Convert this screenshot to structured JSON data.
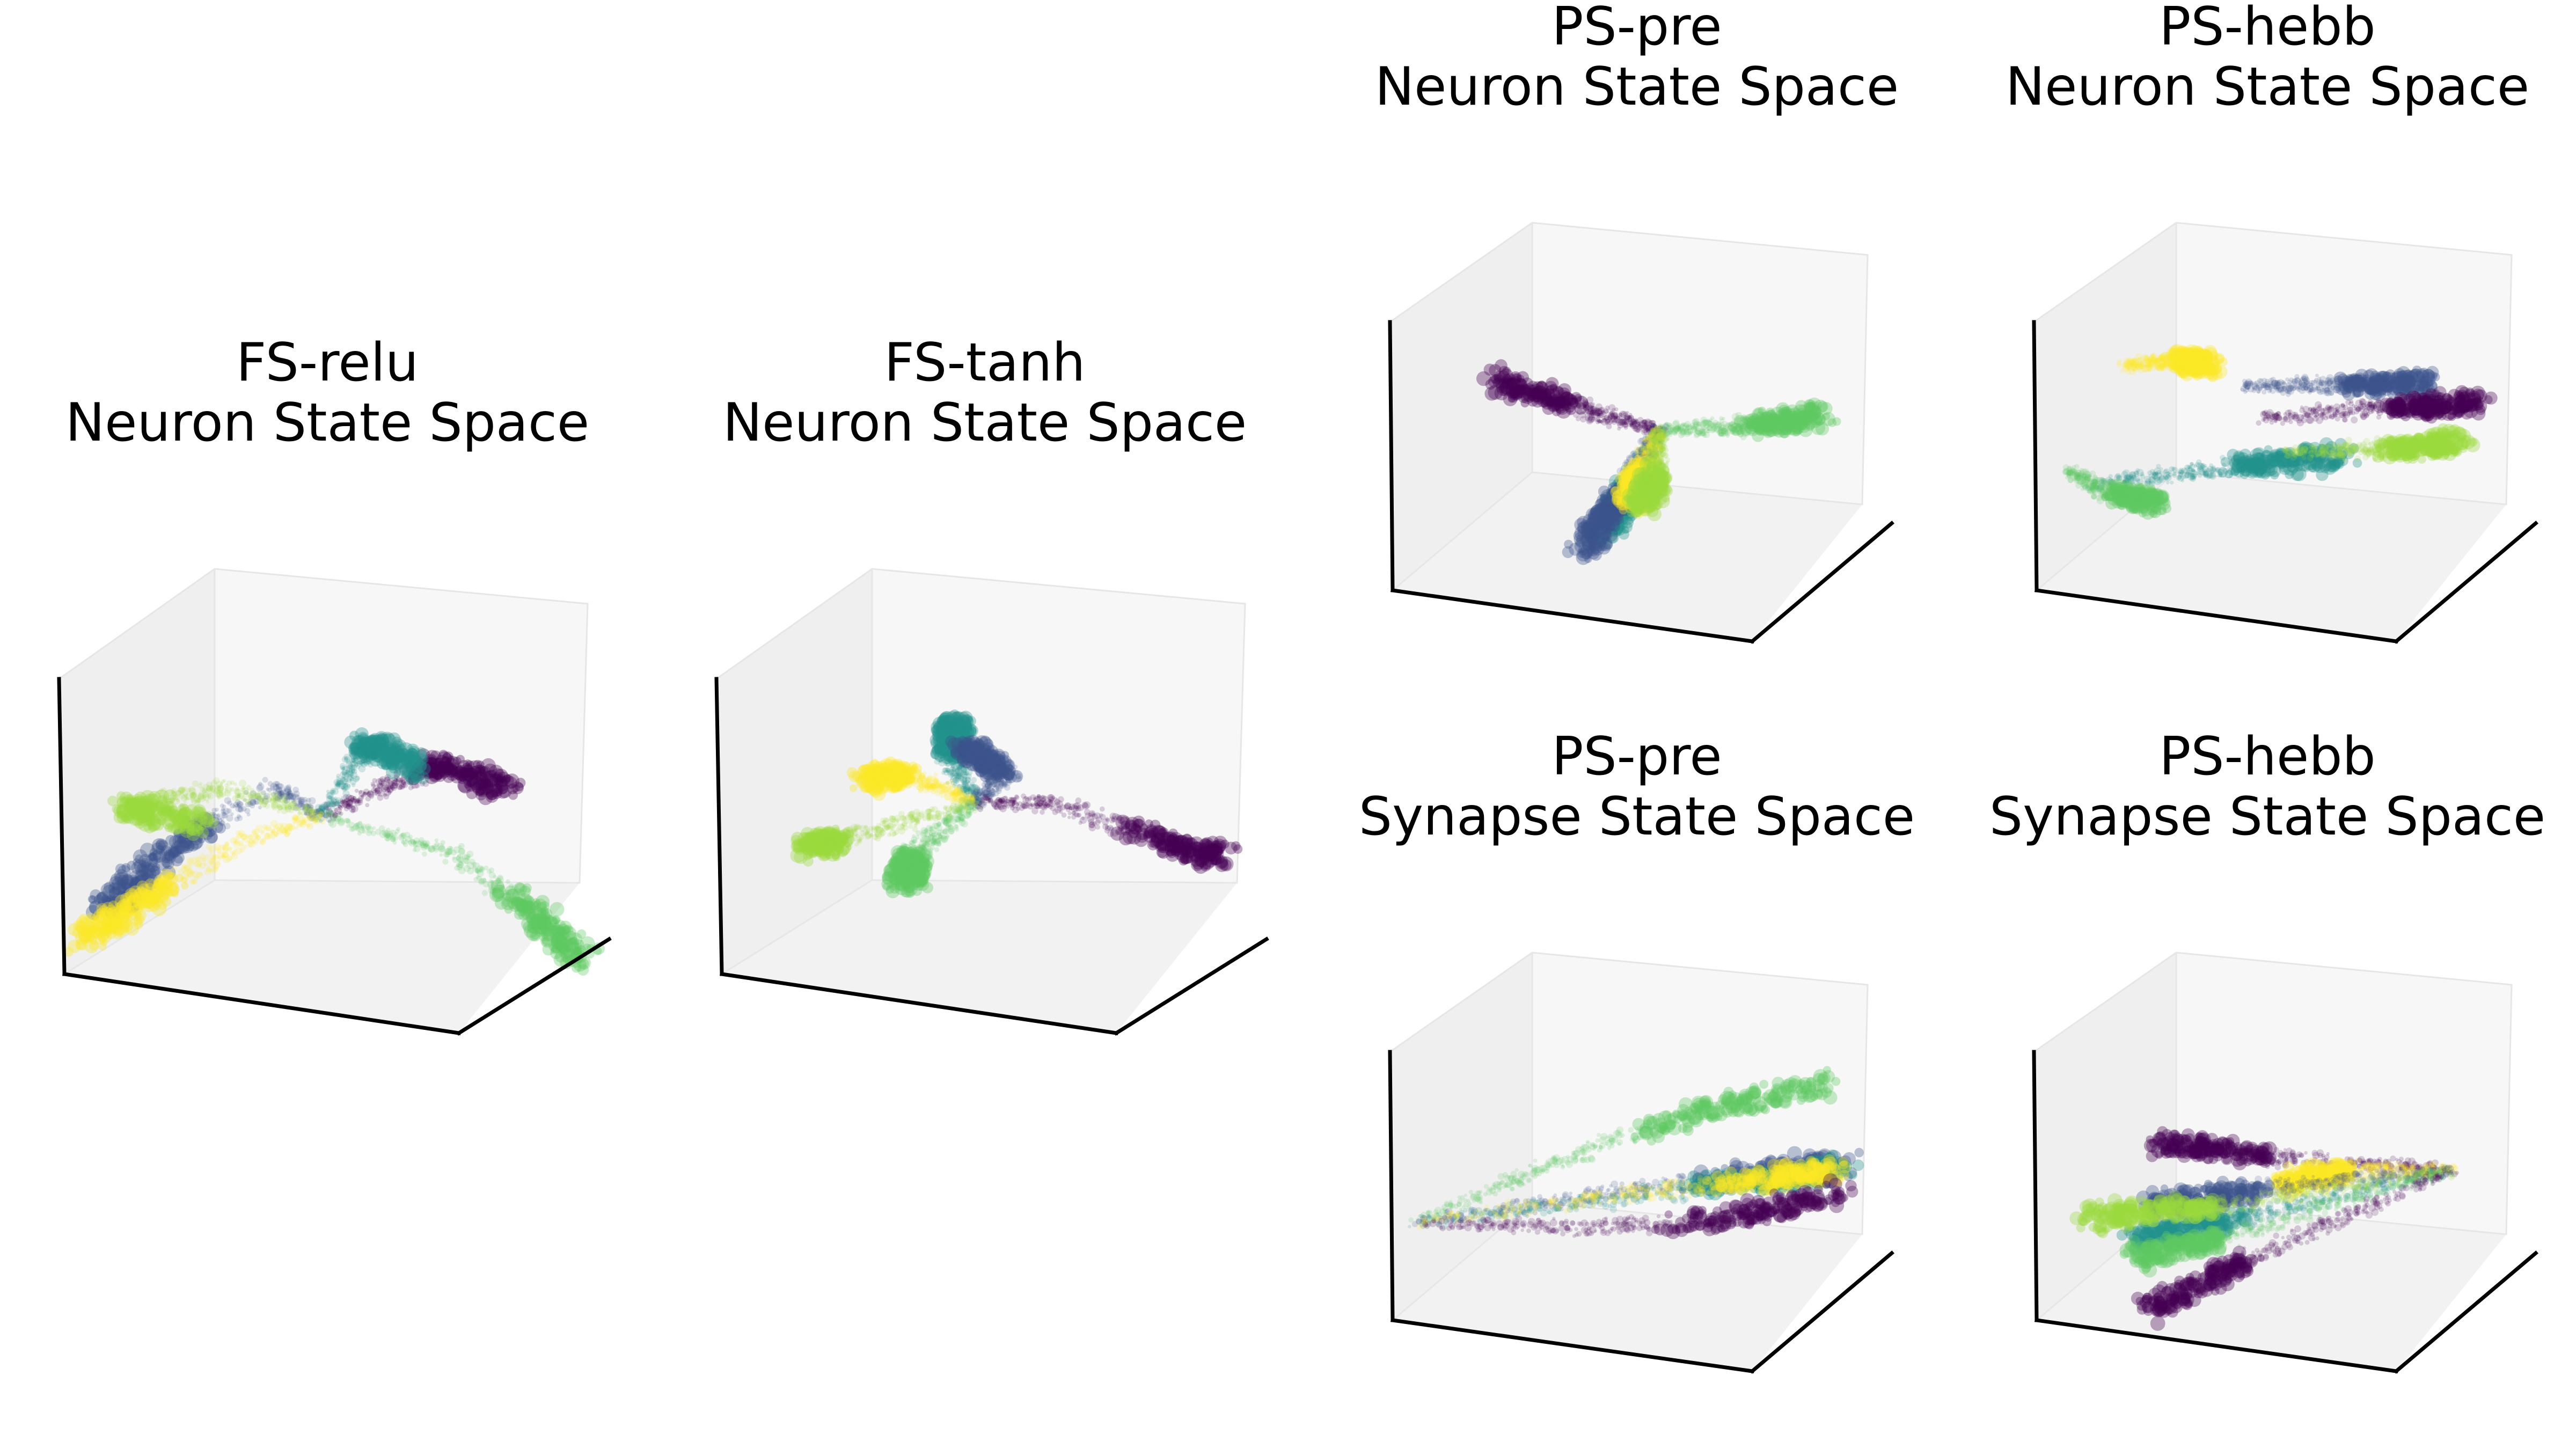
{
  "colors": {
    "palette": [
      "#440154",
      "#3b528b",
      "#21918c",
      "#5ec962",
      "#fde725"
    ],
    "pane_light": "#f7f7f7",
    "pane_mid": "#efefef",
    "pane_floor": "#f2f2f2",
    "axis_line": "#000000"
  },
  "chart_data": [
    {
      "type": "scatter",
      "projection": "3d",
      "title_line1": "FS-relu",
      "title_line2": "Neuron State Space",
      "grid": false,
      "ticks": false,
      "colormap": "viridis",
      "series": [
        {
          "color": "#440154",
          "trajectory": [
            [
              0.0,
              0.0,
              0.3
            ],
            [
              0.3,
              0.15,
              0.55
            ],
            [
              0.5,
              0.3,
              0.7
            ],
            [
              0.75,
              0.5,
              0.5
            ]
          ]
        },
        {
          "color": "#3b528b",
          "trajectory": [
            [
              0.0,
              0.0,
              0.3
            ],
            [
              -0.2,
              -0.1,
              0.5
            ],
            [
              -0.55,
              -0.45,
              0.15
            ],
            [
              -0.85,
              -0.7,
              -0.35
            ]
          ]
        },
        {
          "color": "#21918c",
          "trajectory": [
            [
              0.0,
              0.0,
              0.3
            ],
            [
              0.15,
              0.1,
              0.7
            ],
            [
              0.2,
              0.12,
              0.85
            ],
            [
              0.35,
              0.3,
              0.65
            ]
          ]
        },
        {
          "color": "#5ec962",
          "trajectory": [
            [
              0.0,
              0.0,
              0.3
            ],
            [
              0.5,
              0.4,
              0.0
            ],
            [
              0.8,
              0.7,
              -0.5
            ],
            [
              0.95,
              0.9,
              -0.9
            ]
          ]
        },
        {
          "color": "#9bd93c",
          "trajectory": [
            [
              0.0,
              0.0,
              0.3
            ],
            [
              -0.4,
              -0.2,
              0.5
            ],
            [
              -0.8,
              -0.5,
              0.35
            ],
            [
              -0.5,
              -0.3,
              0.25
            ]
          ]
        },
        {
          "color": "#fde725",
          "trajectory": [
            [
              0.0,
              0.0,
              0.3
            ],
            [
              -0.35,
              -0.25,
              0.1
            ],
            [
              -0.7,
              -0.6,
              -0.3
            ],
            [
              -0.9,
              -0.8,
              -0.55
            ]
          ]
        }
      ]
    },
    {
      "type": "scatter",
      "projection": "3d",
      "title_line1": "FS-tanh",
      "title_line2": "Neuron State Space",
      "grid": false,
      "ticks": false,
      "colormap": "viridis",
      "series": [
        {
          "color": "#21918c",
          "trajectory": [
            [
              -0.1,
              0.2,
              0.3
            ],
            [
              -0.2,
              0.15,
              0.65
            ],
            [
              -0.15,
              0.1,
              0.95
            ]
          ]
        },
        {
          "color": "#3b528b",
          "trajectory": [
            [
              -0.1,
              0.2,
              0.3
            ],
            [
              0.1,
              0.1,
              0.6
            ],
            [
              -0.05,
              0.0,
              0.8
            ]
          ]
        },
        {
          "color": "#440154",
          "trajectory": [
            [
              -0.1,
              0.2,
              0.3
            ],
            [
              0.3,
              0.2,
              0.4
            ],
            [
              0.75,
              0.5,
              0.1
            ],
            [
              0.95,
              0.7,
              -0.05
            ]
          ]
        },
        {
          "color": "#fde725",
          "trajectory": [
            [
              -0.1,
              0.2,
              0.3
            ],
            [
              -0.4,
              0.1,
              0.5
            ],
            [
              -0.55,
              0.0,
              0.45
            ]
          ]
        },
        {
          "color": "#5ec962",
          "trajectory": [
            [
              -0.1,
              0.2,
              0.3
            ],
            [
              -0.3,
              -0.1,
              0.0
            ],
            [
              -0.3,
              -0.2,
              -0.2
            ]
          ]
        },
        {
          "color": "#9bd93c",
          "trajectory": [
            [
              -0.1,
              0.2,
              0.3
            ],
            [
              -0.6,
              -0.3,
              0.1
            ],
            [
              -0.7,
              -0.4,
              0.05
            ]
          ]
        }
      ]
    },
    {
      "type": "scatter",
      "projection": "3d",
      "title_line1": "PS-pre",
      "title_line2": "Neuron State Space",
      "grid": false,
      "ticks": false,
      "colormap": "viridis",
      "series": [
        {
          "color": "#440154",
          "trajectory": [
            [
              0.1,
              0.2,
              0.35
            ],
            [
              -0.2,
              -0.1,
              0.6
            ],
            [
              -0.55,
              -0.45,
              0.95
            ]
          ]
        },
        {
          "color": "#5ec962",
          "trajectory": [
            [
              0.1,
              0.2,
              0.35
            ],
            [
              0.45,
              0.4,
              0.35
            ],
            [
              0.8,
              0.75,
              0.35
            ]
          ]
        },
        {
          "color": "#21918c",
          "trajectory": [
            [
              0.1,
              0.2,
              0.35
            ],
            [
              0.0,
              0.1,
              0.0
            ],
            [
              -0.15,
              0.0,
              -0.5
            ]
          ]
        },
        {
          "color": "#3b528b",
          "trajectory": [
            [
              0.1,
              0.2,
              0.35
            ],
            [
              -0.05,
              0.05,
              -0.1
            ],
            [
              -0.2,
              -0.1,
              -0.55
            ]
          ]
        },
        {
          "color": "#fde725",
          "trajectory": [
            [
              0.1,
              0.2,
              0.35
            ],
            [
              0.05,
              0.1,
              0.1
            ],
            [
              0.0,
              0.05,
              -0.2
            ]
          ]
        },
        {
          "color": "#9bd93c",
          "trajectory": [
            [
              0.1,
              0.2,
              0.35
            ],
            [
              0.1,
              0.15,
              0.05
            ],
            [
              0.05,
              0.1,
              -0.25
            ]
          ]
        }
      ]
    },
    {
      "type": "scatter",
      "projection": "3d",
      "title_line1": "PS-hebb",
      "title_line2": "Neuron State Space",
      "grid": false,
      "ticks": false,
      "colormap": "viridis",
      "series": [
        {
          "color": "#fde725",
          "trajectory": [
            [
              -0.7,
              -0.3,
              0.95
            ],
            [
              -0.5,
              -0.1,
              0.95
            ],
            [
              -0.35,
              0.0,
              0.9
            ]
          ]
        },
        {
          "color": "#3b528b",
          "trajectory": [
            [
              -0.2,
              0.1,
              0.7
            ],
            [
              0.2,
              0.4,
              0.65
            ],
            [
              0.6,
              0.7,
              0.6
            ]
          ]
        },
        {
          "color": "#440154",
          "trajectory": [
            [
              -0.1,
              0.1,
              0.45
            ],
            [
              0.4,
              0.5,
              0.45
            ],
            [
              0.85,
              0.8,
              0.45
            ]
          ]
        },
        {
          "color": "#21918c",
          "trajectory": [
            [
              -0.8,
              -0.5,
              0.05
            ],
            [
              -0.3,
              0.0,
              0.05
            ],
            [
              0.2,
              0.5,
              0.0
            ]
          ]
        },
        {
          "color": "#9bd93c",
          "trajectory": [
            [
              0.0,
              0.2,
              0.15
            ],
            [
              0.4,
              0.5,
              0.1
            ],
            [
              0.75,
              0.8,
              0.1
            ]
          ]
        },
        {
          "color": "#5ec962",
          "trajectory": [
            [
              -0.9,
              -0.6,
              0.2
            ],
            [
              -0.7,
              -0.5,
              0.0
            ],
            [
              -0.5,
              -0.35,
              -0.1
            ]
          ]
        }
      ]
    },
    {
      "type": "scatter",
      "projection": "3d",
      "title_line1": "PS-pre",
      "title_line2": "Synapse State Space",
      "grid": false,
      "ticks": false,
      "colormap": "viridis",
      "series": [
        {
          "color": "#5ec962",
          "trajectory": [
            [
              -0.95,
              -0.6,
              0.0
            ],
            [
              -0.4,
              -0.1,
              0.35
            ],
            [
              0.2,
              0.4,
              0.65
            ],
            [
              0.8,
              0.9,
              0.8
            ]
          ]
        },
        {
          "color": "#3b528b",
          "trajectory": [
            [
              -0.95,
              -0.6,
              0.0
            ],
            [
              -0.2,
              0.1,
              0.05
            ],
            [
              0.45,
              0.6,
              0.1
            ],
            [
              0.85,
              0.9,
              0.15
            ]
          ]
        },
        {
          "color": "#21918c",
          "trajectory": [
            [
              -0.95,
              -0.6,
              0.0
            ],
            [
              -0.2,
              0.1,
              0.0
            ],
            [
              0.45,
              0.6,
              0.05
            ],
            [
              0.85,
              0.9,
              0.08
            ]
          ]
        },
        {
          "color": "#fde725",
          "trajectory": [
            [
              -0.95,
              -0.6,
              0.0
            ],
            [
              -0.1,
              0.2,
              0.02
            ],
            [
              0.5,
              0.65,
              0.06
            ],
            [
              0.8,
              0.88,
              0.08
            ]
          ]
        },
        {
          "color": "#440154",
          "trajectory": [
            [
              -0.95,
              -0.6,
              0.0
            ],
            [
              -0.3,
              0.0,
              -0.2
            ],
            [
              0.3,
              0.5,
              -0.25
            ],
            [
              0.85,
              0.9,
              -0.1
            ]
          ]
        }
      ]
    },
    {
      "type": "scatter",
      "projection": "3d",
      "title_line1": "PS-hebb",
      "title_line2": "Synapse State Space",
      "grid": false,
      "ticks": false,
      "colormap": "viridis",
      "series": [
        {
          "color": "#440154",
          "trajectory": [
            [
              0.7,
              0.8,
              0.1
            ],
            [
              0.0,
              0.1,
              0.4
            ],
            [
              -0.5,
              -0.3,
              0.6
            ]
          ]
        },
        {
          "color": "#fde725",
          "trajectory": [
            [
              0.7,
              0.8,
              0.1
            ],
            [
              0.3,
              0.4,
              0.2
            ],
            [
              0.0,
              0.1,
              0.2
            ]
          ]
        },
        {
          "color": "#3b528b",
          "trajectory": [
            [
              0.7,
              0.8,
              0.1
            ],
            [
              0.0,
              0.1,
              0.15
            ],
            [
              -0.55,
              -0.35,
              0.1
            ]
          ]
        },
        {
          "color": "#21918c",
          "trajectory": [
            [
              0.7,
              0.8,
              0.1
            ],
            [
              -0.1,
              0.0,
              -0.05
            ],
            [
              -0.6,
              -0.4,
              -0.15
            ]
          ]
        },
        {
          "color": "#9bd93c",
          "trajectory": [
            [
              0.7,
              0.8,
              0.1
            ],
            [
              -0.2,
              -0.1,
              0.05
            ],
            [
              -0.8,
              -0.55,
              0.05
            ]
          ]
        },
        {
          "color": "#5ec962",
          "trajectory": [
            [
              0.7,
              0.8,
              0.1
            ],
            [
              -0.2,
              -0.1,
              -0.2
            ],
            [
              -0.6,
              -0.4,
              -0.3
            ]
          ]
        },
        {
          "color": "#440154",
          "trajectory": [
            [
              0.7,
              0.8,
              0.1
            ],
            [
              -0.1,
              0.0,
              -0.4
            ],
            [
              -0.55,
              -0.35,
              -0.75
            ]
          ]
        }
      ]
    }
  ]
}
